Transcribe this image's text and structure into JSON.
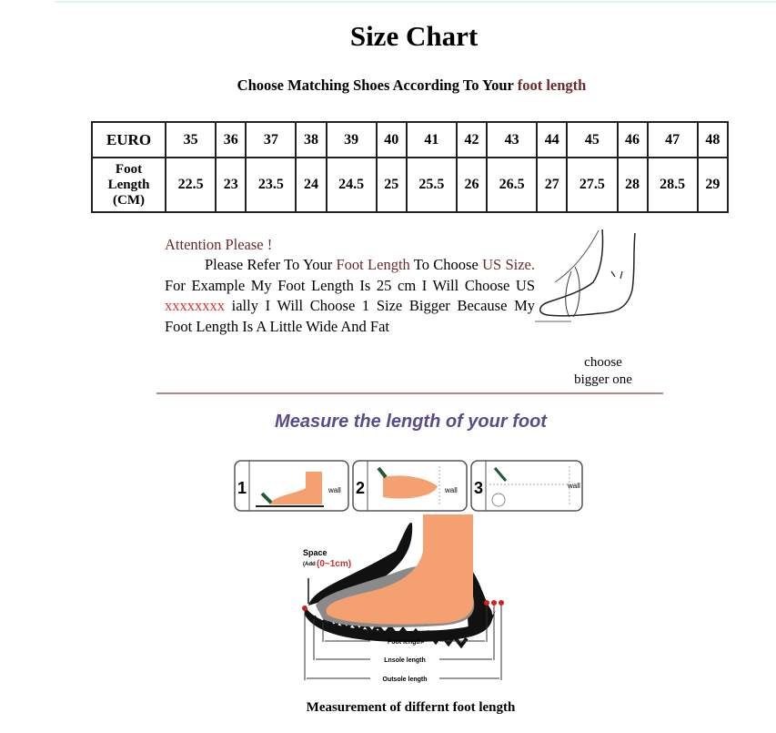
{
  "title": "Size Chart",
  "subtitle": {
    "prefix": "Choose Matching Shoes According To Your ",
    "highlight": "foot length"
  },
  "size_table": {
    "row_headers": {
      "euro": "EURO",
      "foot_length": [
        "Foot",
        "Length",
        "(CM)"
      ]
    },
    "euro": [
      "35",
      "36",
      "37",
      "38",
      "39",
      "40",
      "41",
      "42",
      "43",
      "44",
      "45",
      "46",
      "47",
      "48"
    ],
    "foot_length_cm": [
      "22.5",
      "23",
      "23.5",
      "24",
      "24.5",
      "25",
      "25.5",
      "26",
      "26.5",
      "27",
      "27.5",
      "28",
      "28.5",
      "29"
    ]
  },
  "attention": {
    "heading": "Attention Please !",
    "t1": "Please Refer To Your ",
    "t2": "Foot Length",
    "t3": " To Choose ",
    "t4": "US Size.",
    "t5": " For Example My Foot Length Is 25 cm I Will Choose US ",
    "t6": "xxxxxxxx",
    "t7": " ially I Will Choose 1 Size Bigger Because My Foot Length Is A Little Wide And Fat"
  },
  "choose_note": [
    "choose",
    "bigger one"
  ],
  "measure_heading": "Measure the length of your foot",
  "steps": [
    {
      "number": "1",
      "label": "wall"
    },
    {
      "number": "2",
      "label": "wall"
    },
    {
      "number": "3",
      "label": "wall"
    }
  ],
  "diagram": {
    "space_label": "Space",
    "add_label": "(Add",
    "add_value": "(0~1cm)",
    "foot_length": "Foot length",
    "insole_length": "Lnsole length",
    "outsole_length": "Outsole length"
  },
  "caption": "Measurement of differnt foot length",
  "colors": {
    "accent": "#6b2a2a",
    "heading_purple": "#5b4a8c",
    "skin": "#f4a070",
    "red_marker": "#d42020"
  }
}
